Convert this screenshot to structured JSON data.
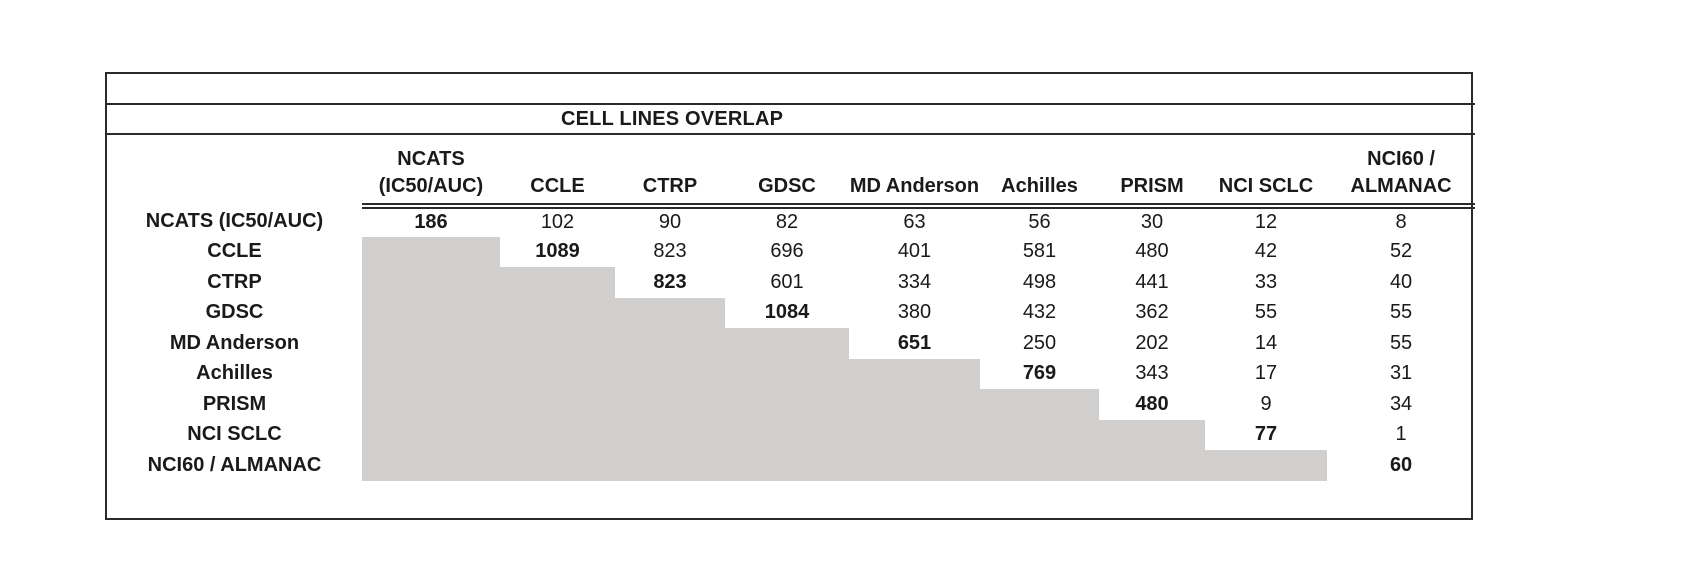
{
  "title": "CELL LINES OVERLAP",
  "colors": {
    "shaded": "#d0cfce",
    "border": "#2a2a2a",
    "text": "#1a1a1a",
    "background": "#ffffff"
  },
  "chart_data": {
    "type": "table",
    "title": "CELL LINES OVERLAP",
    "description": "Pairwise cell-line overlap counts between drug-screening datasets; diagonal (bold) is the dataset's own cell-line count; lower triangle is shaded gray (no values).",
    "columns": [
      "NCATS (IC50/AUC)",
      "CCLE",
      "CTRP",
      "GDSC",
      "MD Anderson",
      "Achilles",
      "PRISM",
      "NCI SCLC",
      "NCI60 / ALMANAC"
    ],
    "header_lines": [
      [
        "NCATS",
        "(IC50/AUC)"
      ],
      [
        "CCLE"
      ],
      [
        "CTRP"
      ],
      [
        "GDSC"
      ],
      [
        "MD Anderson"
      ],
      [
        "Achilles"
      ],
      [
        "PRISM"
      ],
      [
        "NCI SCLC"
      ],
      [
        "NCI60 /",
        "ALMANAC"
      ]
    ],
    "rows": [
      "NCATS (IC50/AUC)",
      "CCLE",
      "CTRP",
      "GDSC",
      "MD Anderson",
      "Achilles",
      "PRISM",
      "NCI SCLC",
      "NCI60 / ALMANAC"
    ],
    "matrix": [
      [
        186,
        102,
        90,
        82,
        63,
        56,
        30,
        12,
        8
      ],
      [
        null,
        1089,
        823,
        696,
        401,
        581,
        480,
        42,
        52
      ],
      [
        null,
        null,
        823,
        601,
        334,
        498,
        441,
        33,
        40
      ],
      [
        null,
        null,
        null,
        1084,
        380,
        432,
        362,
        55,
        55
      ],
      [
        null,
        null,
        null,
        null,
        651,
        250,
        202,
        14,
        55
      ],
      [
        null,
        null,
        null,
        null,
        null,
        769,
        343,
        17,
        31
      ],
      [
        null,
        null,
        null,
        null,
        null,
        null,
        480,
        9,
        34
      ],
      [
        null,
        null,
        null,
        null,
        null,
        null,
        null,
        77,
        1
      ],
      [
        null,
        null,
        null,
        null,
        null,
        null,
        null,
        null,
        60
      ]
    ],
    "diagonal_bold": true,
    "lower_triangle_shaded": true,
    "grid": "outer border, line under top empty row, line under title, double rule under column headers spanning data columns only"
  }
}
